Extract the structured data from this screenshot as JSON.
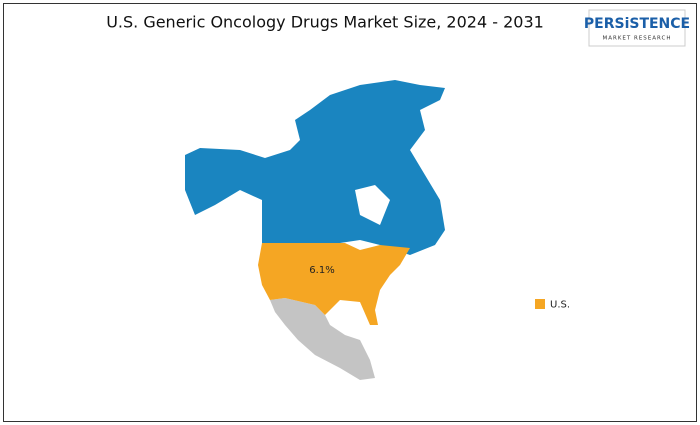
{
  "header": {
    "title": "U.S.  Generic Oncology Drugs Market Size, 2024 - 2031",
    "logo": {
      "name": "PERSiSTENCE",
      "tagline": "MARKET RESEARCH"
    }
  },
  "map": {
    "regions": [
      {
        "name": "U.S.",
        "label": "6.1%",
        "color": "#f5a623"
      }
    ]
  },
  "legend": {
    "items": [
      {
        "name": "U.S.",
        "color": "#f5a623"
      }
    ]
  }
}
